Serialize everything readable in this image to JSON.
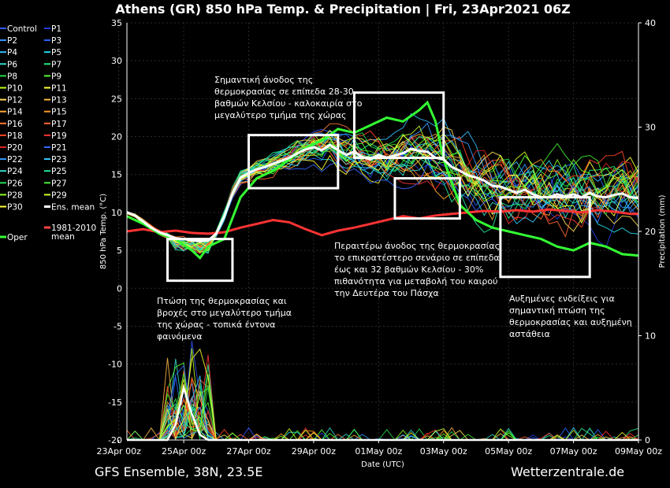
{
  "title": "Athens  (GR)  850 hPa Temp. & Precipitation | Fri, 23Apr2021 06Z",
  "footer": {
    "left": "GFS Ensemble, 38N, 23.5E",
    "right": "Wetterzentrale.de"
  },
  "chart_data": {
    "type": "line",
    "xlabel": "Date (UTC)",
    "ylabel": "850 hPa Temp. (°C)",
    "y2label": "Precipitation (mm)",
    "ylim": [
      -20,
      35
    ],
    "y2lim": [
      0,
      40
    ],
    "x_ticks": [
      "23Apr 00z",
      "25Apr 00z",
      "27Apr 00z",
      "29Apr 00z",
      "01May 00z",
      "03May 00z",
      "05May 00z",
      "07May 00z",
      "09May 00z"
    ],
    "y_ticks": [
      35,
      30,
      25,
      20,
      15,
      10,
      5,
      0,
      -5,
      -10,
      -15,
      -20
    ],
    "y2_ticks": [
      40,
      30,
      20,
      10,
      0
    ],
    "x_start_hours": 6,
    "x_end_hours": 384,
    "grid": true,
    "legend_position": "left",
    "colors": {
      "control": "#2a5cff",
      "mean": "#ffffff",
      "climate": "#ff3333",
      "oper": "#33ff33",
      "box": "#ffffff"
    },
    "legend": [
      {
        "name": "Control",
        "color": "#3355ff"
      },
      {
        "name": "P1",
        "color": "#1f3fe0"
      },
      {
        "name": "P2",
        "color": "#3399ff"
      },
      {
        "name": "P3",
        "color": "#2266ff"
      },
      {
        "name": "P4",
        "color": "#33bbff"
      },
      {
        "name": "P5",
        "color": "#22ddee"
      },
      {
        "name": "P6",
        "color": "#33ddcc"
      },
      {
        "name": "P7",
        "color": "#22ee88"
      },
      {
        "name": "P8",
        "color": "#22dd44"
      },
      {
        "name": "P9",
        "color": "#55ff33"
      },
      {
        "name": "P10",
        "color": "#bbff11"
      },
      {
        "name": "P11",
        "color": "#ffff33"
      },
      {
        "name": "P12",
        "color": "#ffdd55"
      },
      {
        "name": "P13",
        "color": "#ffbb44"
      },
      {
        "name": "P14",
        "color": "#ffaa33"
      },
      {
        "name": "P15",
        "color": "#ff9922"
      },
      {
        "name": "P16",
        "color": "#ff7733"
      },
      {
        "name": "P17",
        "color": "#ff6633"
      },
      {
        "name": "P18",
        "color": "#ff4422"
      },
      {
        "name": "P19",
        "color": "#ff3333"
      },
      {
        "name": "P20",
        "color": "#dd2222"
      },
      {
        "name": "P21",
        "color": "#3366ff"
      },
      {
        "name": "P22",
        "color": "#3399ff"
      },
      {
        "name": "P23",
        "color": "#33ccff"
      },
      {
        "name": "P24",
        "color": "#33ddcc"
      },
      {
        "name": "P25",
        "color": "#22ee99"
      },
      {
        "name": "P26",
        "color": "#22dd55"
      },
      {
        "name": "P27",
        "color": "#44ee33"
      },
      {
        "name": "P28",
        "color": "#88ff22"
      },
      {
        "name": "P29",
        "color": "#ccff22"
      },
      {
        "name": "P30",
        "color": "#ffff33"
      },
      {
        "name": "Ens. mean",
        "color": "#ffffff"
      },
      {
        "name": "1981-2010 mean",
        "color": "#ff4444"
      },
      {
        "name": "Oper",
        "color": "#33ff33"
      }
    ],
    "mean_temp": [
      [
        6,
        10
      ],
      [
        12,
        9.6
      ],
      [
        18,
        8.8
      ],
      [
        24,
        8
      ],
      [
        30,
        7.4
      ],
      [
        36,
        7
      ],
      [
        42,
        6.6
      ],
      [
        48,
        6.5
      ],
      [
        54,
        6.3
      ],
      [
        60,
        6.2
      ],
      [
        66,
        6.3
      ],
      [
        72,
        7.2
      ],
      [
        78,
        9.5
      ],
      [
        84,
        12.5
      ],
      [
        90,
        14.6
      ],
      [
        96,
        15.2
      ],
      [
        102,
        15.7
      ],
      [
        108,
        16
      ],
      [
        114,
        16.4
      ],
      [
        120,
        16.8
      ],
      [
        126,
        17.2
      ],
      [
        132,
        17.8
      ],
      [
        138,
        18.3
      ],
      [
        144,
        18.6
      ],
      [
        150,
        18.2
      ],
      [
        156,
        18.9
      ],
      [
        162,
        18.2
      ],
      [
        168,
        17.6
      ],
      [
        174,
        18
      ],
      [
        180,
        17.3
      ],
      [
        186,
        17
      ],
      [
        192,
        17.6
      ],
      [
        198,
        17.2
      ],
      [
        204,
        17.5
      ],
      [
        210,
        17.8
      ],
      [
        216,
        18.4
      ],
      [
        222,
        18.1
      ],
      [
        228,
        18
      ],
      [
        234,
        17.2
      ],
      [
        240,
        17
      ],
      [
        246,
        16
      ],
      [
        252,
        15.5
      ],
      [
        258,
        14.9
      ],
      [
        264,
        14.6
      ],
      [
        270,
        14.2
      ],
      [
        276,
        13.5
      ],
      [
        282,
        13.4
      ],
      [
        288,
        13
      ],
      [
        294,
        12.6
      ],
      [
        300,
        13
      ],
      [
        306,
        12.4
      ],
      [
        312,
        12
      ],
      [
        318,
        12
      ],
      [
        324,
        12.4
      ],
      [
        330,
        12.1
      ],
      [
        336,
        12.4
      ],
      [
        342,
        12
      ],
      [
        348,
        12.6
      ],
      [
        354,
        12.1
      ],
      [
        360,
        12
      ],
      [
        366,
        12.3
      ],
      [
        372,
        12.5
      ],
      [
        378,
        12
      ],
      [
        384,
        11.9
      ]
    ],
    "climate_temp": [
      [
        6,
        7.5
      ],
      [
        18,
        7.8
      ],
      [
        30,
        7.4
      ],
      [
        42,
        7.6
      ],
      [
        54,
        7.3
      ],
      [
        66,
        7.2
      ],
      [
        78,
        7.4
      ],
      [
        90,
        8
      ],
      [
        102,
        8.5
      ],
      [
        114,
        9
      ],
      [
        126,
        8.7
      ],
      [
        138,
        7.8
      ],
      [
        150,
        7
      ],
      [
        162,
        7.6
      ],
      [
        174,
        8
      ],
      [
        186,
        8.5
      ],
      [
        198,
        9
      ],
      [
        210,
        9.5
      ],
      [
        222,
        9.2
      ],
      [
        234,
        9.6
      ],
      [
        246,
        9.8
      ],
      [
        258,
        10
      ],
      [
        270,
        10.2
      ],
      [
        282,
        10.1
      ],
      [
        294,
        10.3
      ],
      [
        306,
        10.1
      ],
      [
        318,
        10.4
      ],
      [
        330,
        10.2
      ],
      [
        342,
        10
      ],
      [
        354,
        10.3
      ],
      [
        366,
        10.1
      ],
      [
        378,
        9.8
      ],
      [
        384,
        9.8
      ]
    ],
    "oper_temp": [
      [
        6,
        9.5
      ],
      [
        18,
        8.5
      ],
      [
        30,
        7.2
      ],
      [
        42,
        6.5
      ],
      [
        54,
        5
      ],
      [
        60,
        4
      ],
      [
        66,
        5.5
      ],
      [
        78,
        6.5
      ],
      [
        90,
        12
      ],
      [
        102,
        14.5
      ],
      [
        114,
        15.5
      ],
      [
        126,
        17
      ],
      [
        138,
        18.5
      ],
      [
        150,
        19.5
      ],
      [
        162,
        21
      ],
      [
        174,
        20.5
      ],
      [
        186,
        21.5
      ],
      [
        198,
        22.5
      ],
      [
        210,
        22
      ],
      [
        222,
        23.5
      ],
      [
        228,
        24.5
      ],
      [
        234,
        22
      ],
      [
        240,
        17
      ],
      [
        252,
        11
      ],
      [
        264,
        9
      ],
      [
        276,
        8
      ],
      [
        288,
        7.5
      ],
      [
        300,
        7
      ],
      [
        312,
        6.5
      ],
      [
        324,
        5.5
      ],
      [
        336,
        5
      ],
      [
        348,
        6
      ],
      [
        360,
        5.5
      ],
      [
        372,
        4.5
      ],
      [
        384,
        4.3
      ]
    ],
    "mean_precip": [
      [
        6,
        0
      ],
      [
        36,
        0
      ],
      [
        42,
        1.5
      ],
      [
        48,
        5
      ],
      [
        54,
        2.5
      ],
      [
        60,
        0.5
      ],
      [
        66,
        0
      ],
      [
        384,
        0
      ]
    ],
    "annotations": [
      "Σημαντική άνοδος της\nθερμοκρασίας σε επίπεδα 28-30\nβαθμών Κελσίου - καλοκαιρία στο\nμεγαλύτερο τμήμα της χώρας",
      "Πτώση της θερμοκρασίας και\nβροχές στο μεγαλύτερο τμήμα\nτης χώρας - τοπικά έντονα\nφαινόμενα",
      "Περαιτέρω άνοδος της θερμοκρασίας\nτο επικρατέστερο σενάριο σε επίπεδα\nέως και 32 βαθμών Κελσίου - 30%\nπιθανότητα για μεταβολή του καιρού\nτην Δευτέρα του Πάσχα",
      "Αυξημένες ενδείξεις για\nσημαντική πτώση της\nθερμοκρασίας και αυξημένη\nαστάθεια"
    ],
    "boxes": [
      {
        "x0": 36,
        "x1": 84,
        "y0": 1,
        "y1": 6.5
      },
      {
        "x0": 96,
        "x1": 162,
        "y0": 13.2,
        "y1": 20.2
      },
      {
        "x0": 174,
        "x1": 240,
        "y0": 17.2,
        "y1": 25.8
      },
      {
        "x0": 204,
        "x1": 252,
        "y0": 9.2,
        "y1": 14.5
      },
      {
        "x0": 282,
        "x1": 348,
        "y0": 1.5,
        "y1": 12
      }
    ]
  }
}
